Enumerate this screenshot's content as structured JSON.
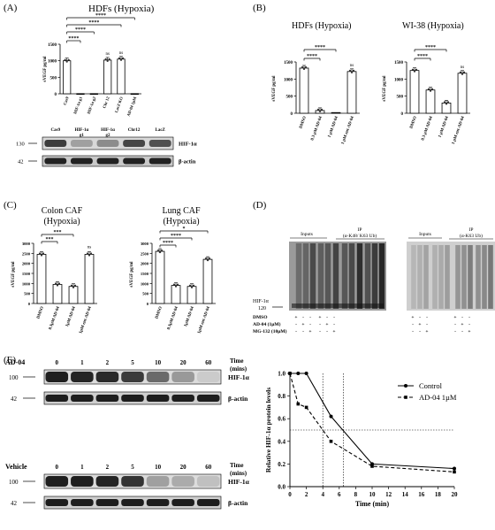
{
  "panels": {
    "A": {
      "letter": "(A)",
      "title": "HDFs (Hypoxia)",
      "ylabel": "sVEGF pg/ml",
      "yticks": [
        "0",
        "500",
        "1000",
        "1500"
      ],
      "categories": [
        "Cas9",
        "HIF-1α g1",
        "HIF-1α g2",
        "Chr 12",
        "LacZ KO",
        "AD-04 1µM"
      ],
      "sig": [
        "****",
        "****",
        "****",
        "****"
      ],
      "ns": [
        "ns",
        "ns"
      ],
      "blot_lanes": [
        {
          "l1": "Cas9",
          "l2": ""
        },
        {
          "l1": "HIF-1α",
          "l2": "g1"
        },
        {
          "l1": "HIF-1α",
          "l2": "g2"
        },
        {
          "l1": "Chr12",
          "l2": ""
        },
        {
          "l1": "LacZ",
          "l2": ""
        }
      ],
      "mw": [
        "130",
        "42"
      ],
      "blot_labels": [
        "HIF-1α",
        "β-actin"
      ]
    },
    "B": {
      "letter": "(B)",
      "titles": [
        "HDFs (Hypoxia)",
        "WI-38 (Hypoxia)"
      ],
      "ylabel": "sVEGF pg/ml",
      "yticks": [
        "0",
        "500",
        "1000",
        "1500"
      ],
      "categories": [
        "DMSO",
        "0.3 µM AD-04",
        "1 µM AD-04",
        "1 µM ent-AD-04"
      ],
      "sig": [
        "****",
        "****"
      ],
      "ns": "ns"
    },
    "C": {
      "letter": "(C)",
      "titles": [
        [
          "Colon CAF",
          "(Hypoxia)"
        ],
        [
          "Lung CAF",
          "(Hypoxia)"
        ]
      ],
      "ylabel": "sVEGF pg/ml",
      "yticks": [
        "0",
        "500",
        "1000",
        "1500",
        "2000",
        "2500",
        "3000"
      ],
      "categories": [
        "DMSO",
        "0.3µM AD-04",
        "1µM AD-04",
        "1µM ent-AD-04"
      ],
      "sig_left": [
        "***",
        "***"
      ],
      "sig_right": [
        "****",
        "****",
        "*"
      ],
      "ns": "ns"
    },
    "D": {
      "letter": "(D)",
      "groups": [
        "Inputs",
        "IP",
        "(α-K48/ K63 Ub)",
        "Inputs",
        "IP",
        "(α-K63 Ub)"
      ],
      "band": [
        "HIF-1α",
        "120"
      ],
      "rows": [
        {
          "label": "DMSO",
          "marks": [
            "+",
            "-",
            "-",
            "+",
            "-",
            "-",
            "+",
            "-",
            "-",
            "+",
            "-",
            "-"
          ]
        },
        {
          "label": "AD-04 (1µM)",
          "marks": [
            "-",
            "+",
            "-",
            "-",
            "+",
            "-",
            "-",
            "+",
            "-",
            "-",
            "+",
            "-"
          ]
        },
        {
          "label": "MG-132 (10µM)",
          "marks": [
            "-",
            "-",
            "+",
            "-",
            "-",
            "+",
            "-",
            "-",
            "+",
            "-",
            "-",
            "+"
          ]
        }
      ]
    },
    "E": {
      "letter": "(E)",
      "blots": [
        {
          "treatment": "AD-04",
          "times": [
            "0",
            "1",
            "2",
            "5",
            "10",
            "20",
            "60"
          ],
          "mw": [
            "100",
            "42"
          ],
          "labels": [
            "HIF-1α",
            "β-actin"
          ],
          "time_label": [
            "Time",
            "(mins)"
          ],
          "intensity": [
            0.95,
            0.92,
            0.9,
            0.82,
            0.6,
            0.38,
            0.15
          ]
        },
        {
          "treatment": "Vehicle",
          "times": [
            "0",
            "1",
            "2",
            "5",
            "10",
            "20",
            "60"
          ],
          "mw": [
            "100",
            "42"
          ],
          "labels": [
            "HIF-1α",
            "β-actin"
          ],
          "time_label": [
            "Time",
            "(mins)"
          ],
          "intensity": [
            0.95,
            0.95,
            0.92,
            0.85,
            0.35,
            0.3,
            0.2
          ]
        }
      ]
    }
  },
  "chart_data": [
    {
      "type": "bar",
      "panel": "A",
      "categories": [
        "Cas9",
        "HIF-1α g1",
        "HIF-1α g2",
        "Chr 12",
        "LacZ KO",
        "AD-04 1µM"
      ],
      "values": [
        1000,
        5,
        5,
        1020,
        1050,
        5
      ],
      "ylabel": "sVEGF pg/ml",
      "ylim": [
        0,
        1500
      ]
    },
    {
      "type": "bar",
      "panel": "B-left",
      "title": "HDFs (Hypoxia)",
      "categories": [
        "DMSO",
        "0.3 µM AD-04",
        "1 µM AD-04",
        "1 µM ent-AD-04"
      ],
      "values": [
        1320,
        80,
        20,
        1220
      ],
      "ylabel": "sVEGF pg/ml",
      "ylim": [
        0,
        1500
      ]
    },
    {
      "type": "bar",
      "panel": "B-right",
      "title": "WI-38 (Hypoxia)",
      "categories": [
        "DMSO",
        "0.3 µM AD-04",
        "1 µM AD-04",
        "1 µM ent-AD-04"
      ],
      "values": [
        1250,
        680,
        300,
        1170
      ],
      "ylabel": "sVEGF pg/ml",
      "ylim": [
        0,
        1500
      ]
    },
    {
      "type": "bar",
      "panel": "C-left",
      "title": "Colon CAF (Hypoxia)",
      "categories": [
        "DMSO",
        "0.3µM AD-04",
        "1µM AD-04",
        "1µM ent-AD-04"
      ],
      "values": [
        2450,
        950,
        850,
        2450
      ],
      "ylabel": "sVEGF pg/ml",
      "ylim": [
        0,
        3000
      ]
    },
    {
      "type": "bar",
      "panel": "C-right",
      "title": "Lung CAF (Hypoxia)",
      "categories": [
        "DMSO",
        "0.3µM AD-04",
        "1µM AD-04",
        "1µM ent-AD-04"
      ],
      "values": [
        2600,
        900,
        850,
        2200
      ],
      "ylabel": "sVEGF pg/ml",
      "ylim": [
        0,
        3000
      ]
    },
    {
      "type": "line",
      "panel": "E",
      "xlabel": "Time (min)",
      "ylabel": "Relative HIF-1α protein levels",
      "xlim": [
        0,
        20
      ],
      "ylim": [
        0,
        1.0
      ],
      "xticks": [
        "0",
        "2",
        "4",
        "6",
        "8",
        "10",
        "12",
        "14",
        "16",
        "18",
        "20"
      ],
      "yticks": [
        "0.0",
        "0.2",
        "0.4",
        "0.6",
        "0.8",
        "1.0"
      ],
      "legend": "right",
      "hline": 0.5,
      "vlines": [
        4,
        6.5
      ],
      "series": [
        {
          "name": "Control",
          "style": "solid",
          "x": [
            0,
            1,
            2,
            5,
            10,
            20
          ],
          "y": [
            1.0,
            1.0,
            1.0,
            0.62,
            0.2,
            0.16
          ]
        },
        {
          "name": "AD-04 1µM",
          "style": "dashed",
          "x": [
            0,
            1,
            2,
            5,
            10,
            20
          ],
          "y": [
            1.0,
            0.73,
            0.7,
            0.4,
            0.18,
            0.13
          ]
        }
      ]
    }
  ]
}
